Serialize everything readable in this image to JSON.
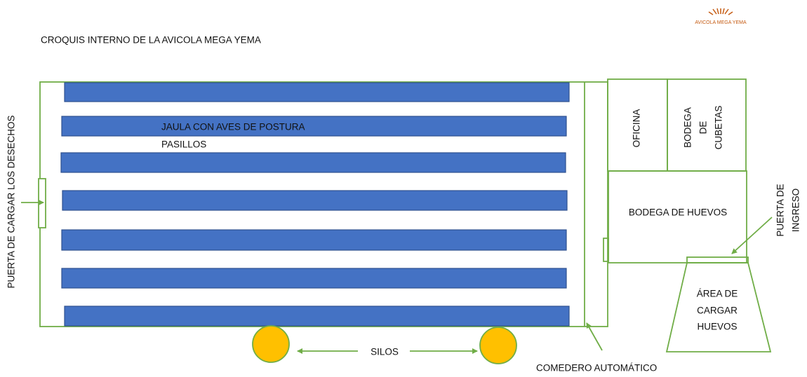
{
  "title": "CROQUIS INTERNO DE LA AVICOLA MEGA YEMA",
  "logo": "AVICOLA MEGA YEMA",
  "labels": {
    "cages": "JAULA CON AVES DE POSTURA",
    "aisles": "PASILLOS",
    "waste_door": "PUERTA DE CARGAR LOS DESECHOS",
    "office": "OFICINA",
    "tray_storage": [
      "BODEGA",
      "DE",
      "CUBETAS"
    ],
    "egg_storage": "BODEGA DE HUEVOS",
    "entry_door": [
      "PUERTA DE",
      "INGRESO"
    ],
    "loading_area": [
      "ÁREA DE",
      "CARGAR",
      "HUEVOS"
    ],
    "silos": "SILOS",
    "feeder": "COMEDERO AUTOMÁTICO"
  }
}
